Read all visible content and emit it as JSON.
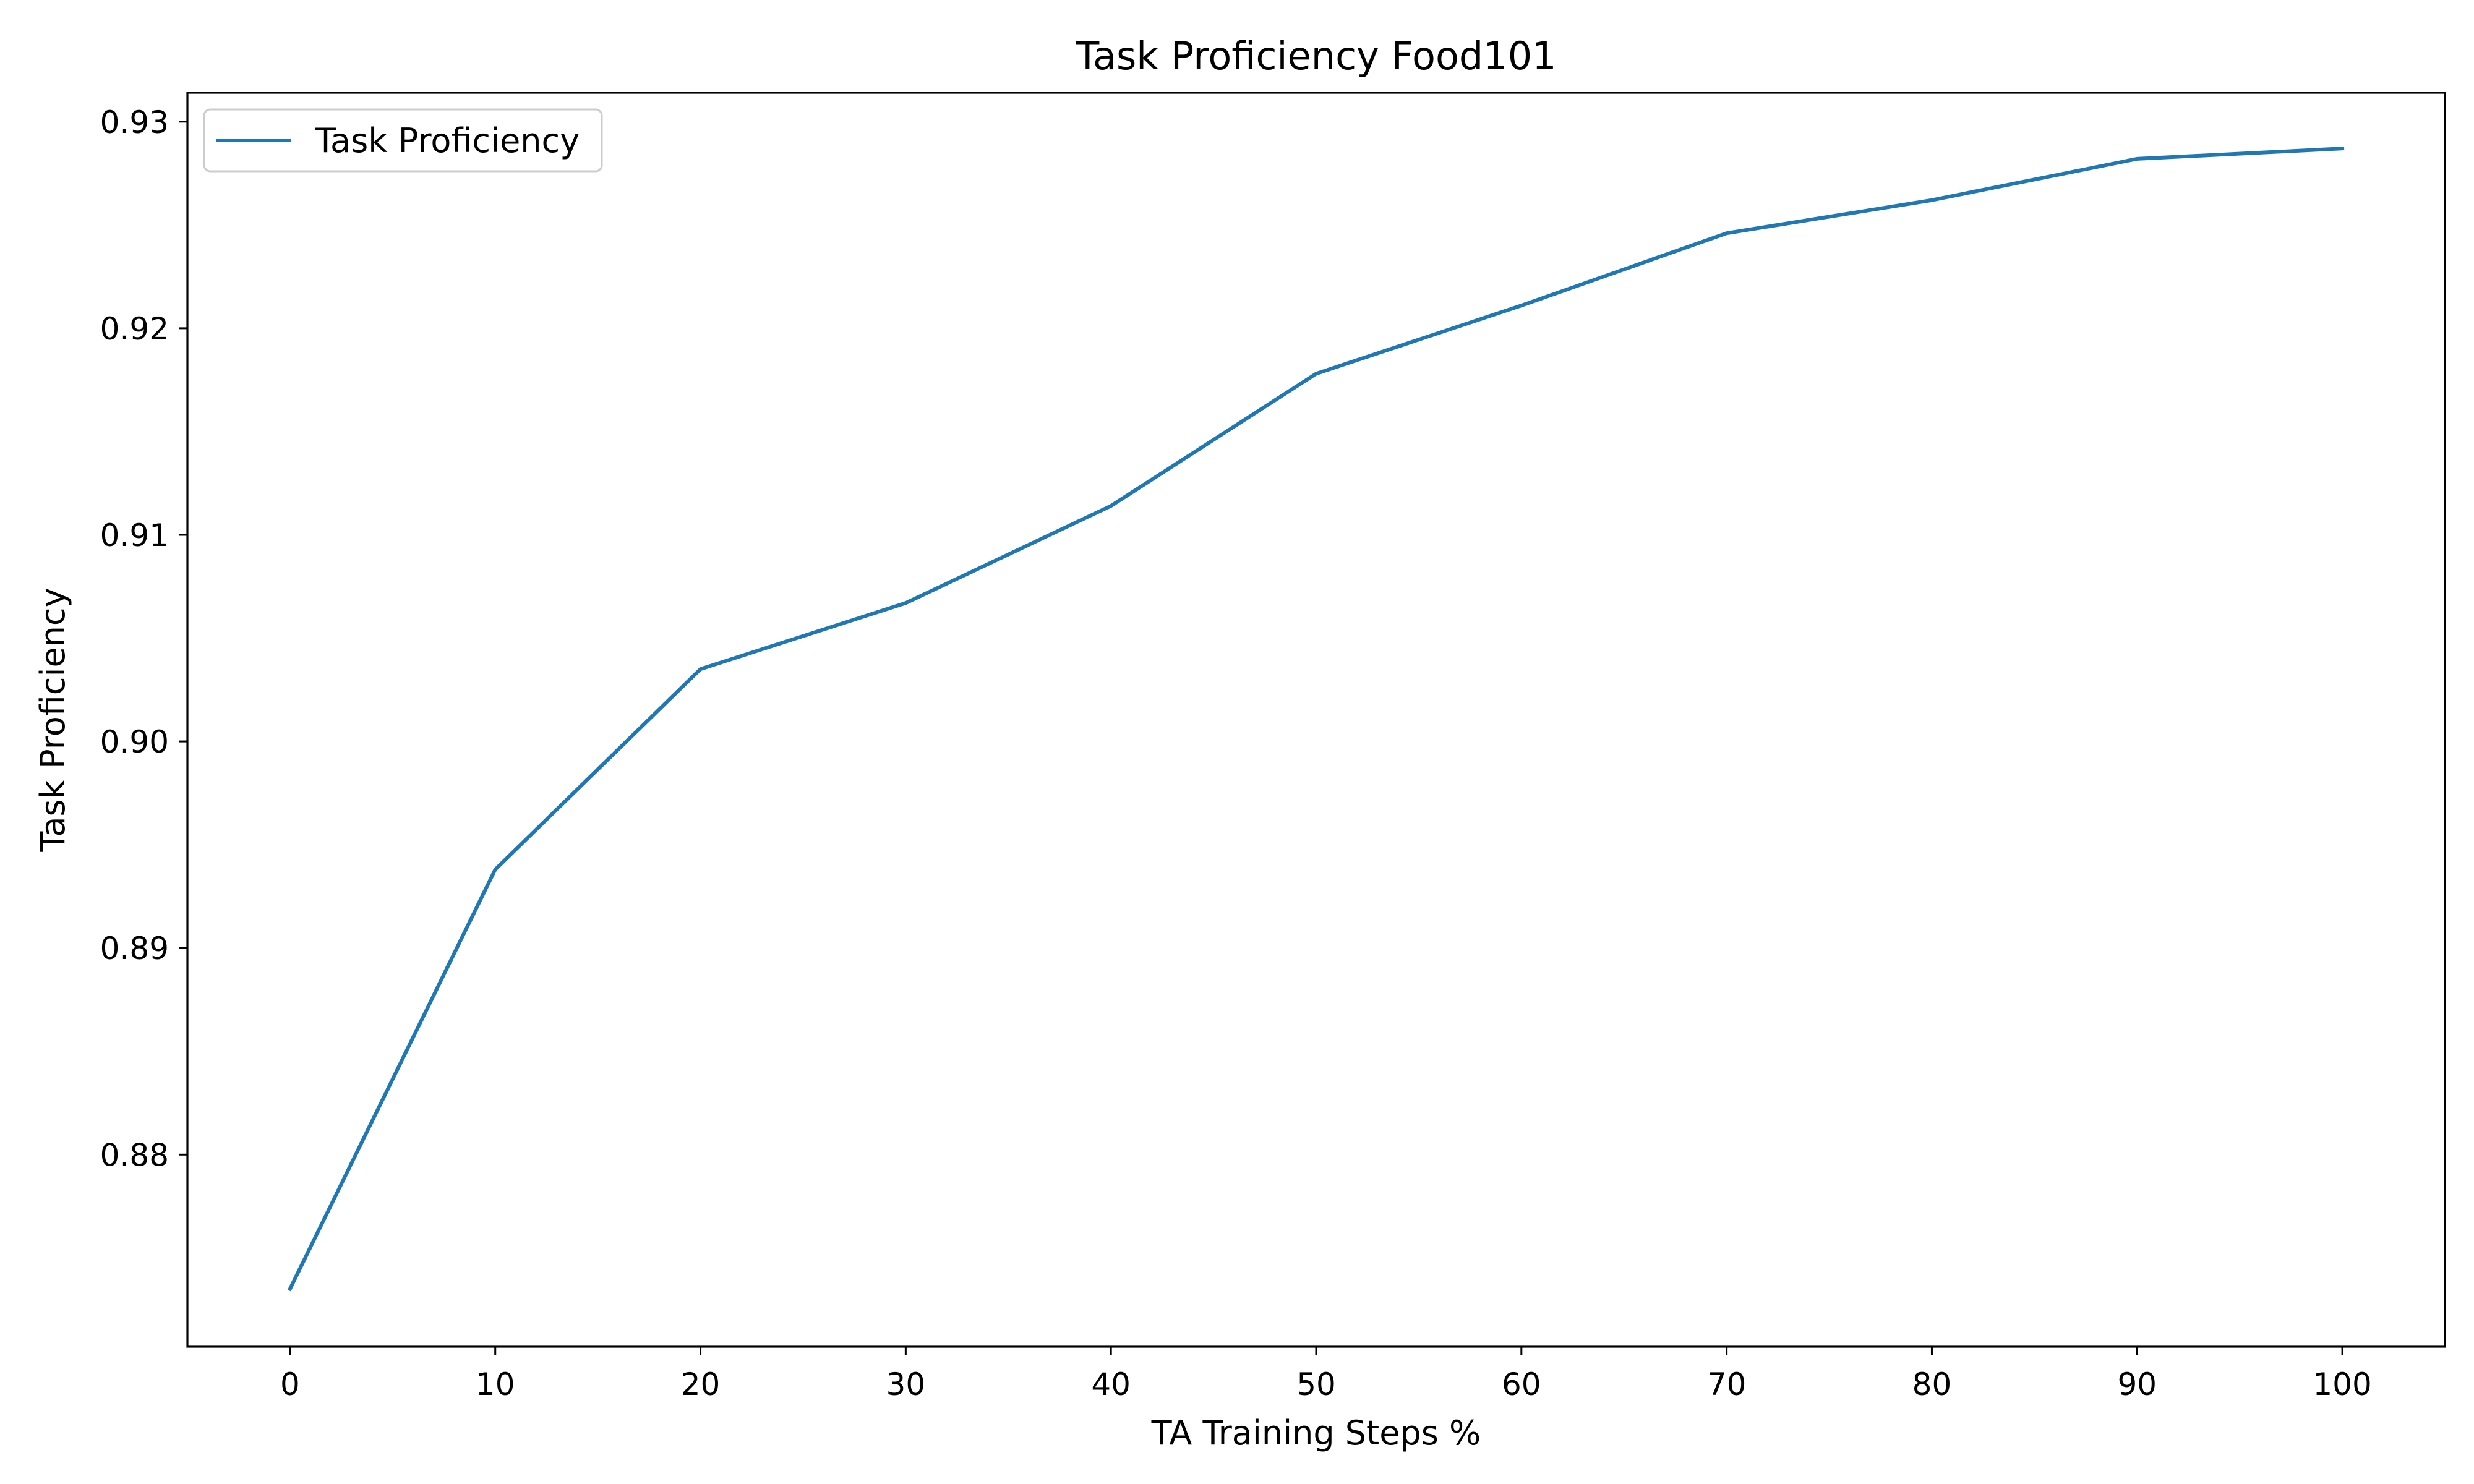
{
  "chart_data": {
    "type": "line",
    "title": "Task Proficiency Food101",
    "xlabel": "TA Training Steps %",
    "ylabel": "Task Proficiency",
    "x": [
      0,
      10,
      20,
      30,
      40,
      50,
      60,
      70,
      80,
      90,
      100
    ],
    "series": [
      {
        "name": "Task Proficiency",
        "color": "#1f77b4",
        "values": [
          0.8735,
          0.8938,
          0.9035,
          0.9067,
          0.9114,
          0.9178,
          0.9211,
          0.9246,
          0.9262,
          0.9282,
          0.9287
        ]
      }
    ],
    "xticks": [
      "0",
      "10",
      "20",
      "30",
      "40",
      "50",
      "60",
      "70",
      "80",
      "90",
      "100"
    ],
    "yticks": [
      "0.88",
      "0.89",
      "0.90",
      "0.91",
      "0.92",
      "0.93"
    ],
    "xlim": [
      -5,
      105
    ],
    "ylim": [
      0.8707,
      0.9314
    ],
    "grid": false,
    "legend_position": "upper-left"
  }
}
